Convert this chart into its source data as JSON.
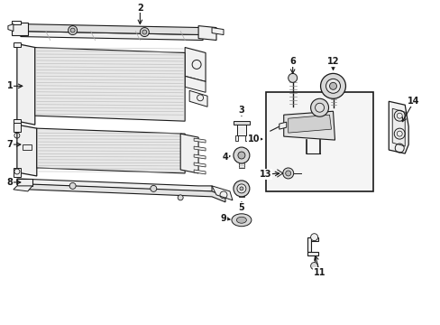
{
  "bg_color": "#ffffff",
  "fig_width": 4.89,
  "fig_height": 3.6,
  "dpi": 100,
  "line_color": "#1a1a1a",
  "label_fontsize": 7.0,
  "fill_light": "#f0f0f0",
  "fill_mid": "#d8d8d8",
  "fill_dark": "#b8b8b8",
  "hatch_color": "#999999"
}
